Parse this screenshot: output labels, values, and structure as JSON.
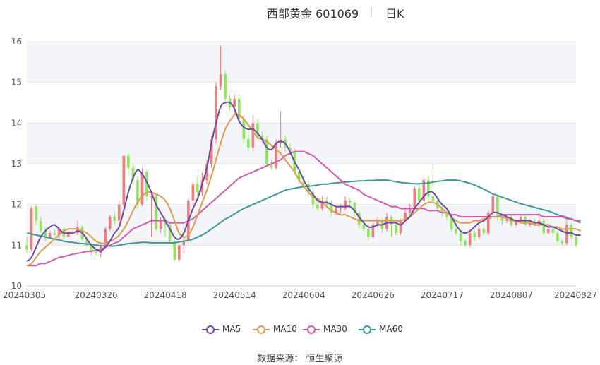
{
  "header": {
    "title": "西部黄金 601069",
    "period": "日K"
  },
  "footer": {
    "source_label": "数据来源：",
    "source_name": "恒生聚源"
  },
  "chart_data": {
    "type": "candlestick",
    "title": "西部黄金 601069",
    "period": "日K",
    "xlabel": "",
    "ylabel": "",
    "ylim": [
      10,
      16
    ],
    "yticks": [
      10,
      11,
      12,
      13,
      14,
      15,
      16
    ],
    "x_tick_labels": [
      "20240305",
      "20240326",
      "20240418",
      "20240514",
      "20240604",
      "20240626",
      "20240717",
      "20240807",
      "20240827"
    ],
    "x_tick_indices": [
      0,
      15,
      30,
      45,
      60,
      75,
      90,
      105,
      120
    ],
    "grid": true,
    "legend_position": "bottom",
    "colors": {
      "up": "#f07c7c",
      "down": "#8ee65b",
      "ma5": "#6a4aa8",
      "ma10": "#e09a50",
      "ma30": "#d35ab0",
      "ma60": "#3e9999"
    },
    "ohlc": [
      [
        11.0,
        10.9,
        11.2,
        10.8
      ],
      [
        10.9,
        11.9,
        11.95,
        10.85
      ],
      [
        11.95,
        11.6,
        12.0,
        11.5
      ],
      [
        11.6,
        11.35,
        11.7,
        11.3
      ],
      [
        11.35,
        11.2,
        11.45,
        11.1
      ],
      [
        11.2,
        11.3,
        11.35,
        11.15
      ],
      [
        11.3,
        11.25,
        11.4,
        11.2
      ],
      [
        11.25,
        11.4,
        11.45,
        11.1
      ],
      [
        11.4,
        11.2,
        11.45,
        11.15
      ],
      [
        11.2,
        11.3,
        11.35,
        11.2
      ],
      [
        11.3,
        11.3,
        11.35,
        11.25
      ],
      [
        11.3,
        11.45,
        11.6,
        11.25
      ],
      [
        11.45,
        11.15,
        11.5,
        11.1
      ],
      [
        11.15,
        11.0,
        11.2,
        10.95
      ],
      [
        11.0,
        10.85,
        11.05,
        10.75
      ],
      [
        10.85,
        10.8,
        10.9,
        10.75
      ],
      [
        10.8,
        11.0,
        11.05,
        10.7
      ],
      [
        11.0,
        11.4,
        11.45,
        10.95
      ],
      [
        11.4,
        11.7,
        11.75,
        11.35
      ],
      [
        11.7,
        11.6,
        11.8,
        11.5
      ],
      [
        11.6,
        12.0,
        12.1,
        11.55
      ],
      [
        12.0,
        13.2,
        13.2,
        11.95
      ],
      [
        13.2,
        12.9,
        13.25,
        12.7
      ],
      [
        12.9,
        12.6,
        13.0,
        12.5
      ],
      [
        12.6,
        12.0,
        12.7,
        11.9
      ],
      [
        12.0,
        12.8,
        12.9,
        11.95
      ],
      [
        12.8,
        12.2,
        12.85,
        12.1
      ],
      [
        12.2,
        12.2,
        12.3,
        11.2
      ],
      [
        12.2,
        11.4,
        12.25,
        11.35
      ],
      [
        11.4,
        11.6,
        11.7,
        11.3
      ],
      [
        11.6,
        11.5,
        11.7,
        11.2
      ],
      [
        11.5,
        11.1,
        11.55,
        11.05
      ],
      [
        11.1,
        10.65,
        11.15,
        10.6
      ],
      [
        10.65,
        11.0,
        11.05,
        10.6
      ],
      [
        11.0,
        11.1,
        11.2,
        10.8
      ],
      [
        11.1,
        12.1,
        12.15,
        11.05
      ],
      [
        12.1,
        12.5,
        12.55,
        12.0
      ],
      [
        12.5,
        12.3,
        12.7,
        12.2
      ],
      [
        12.3,
        12.6,
        12.8,
        12.2
      ],
      [
        12.6,
        13.0,
        13.1,
        12.5
      ],
      [
        13.0,
        13.6,
        13.7,
        12.9
      ],
      [
        13.6,
        14.9,
        15.0,
        13.5
      ],
      [
        14.9,
        15.2,
        15.9,
        14.8
      ],
      [
        15.2,
        14.6,
        15.3,
        14.5
      ],
      [
        14.6,
        14.4,
        14.7,
        14.3
      ],
      [
        14.4,
        14.6,
        14.7,
        14.2
      ],
      [
        14.6,
        14.1,
        14.7,
        14.0
      ],
      [
        14.1,
        13.6,
        14.2,
        13.5
      ],
      [
        13.6,
        13.4,
        13.8,
        13.3
      ],
      [
        13.4,
        14.0,
        14.2,
        13.3
      ],
      [
        14.0,
        13.7,
        14.1,
        13.6
      ],
      [
        13.7,
        13.6,
        13.8,
        13.5
      ],
      [
        13.6,
        13.0,
        13.7,
        12.9
      ],
      [
        13.0,
        12.9,
        13.1,
        12.85
      ],
      [
        12.9,
        13.5,
        13.6,
        12.85
      ],
      [
        13.5,
        13.6,
        14.3,
        13.4
      ],
      [
        13.6,
        13.4,
        13.7,
        13.3
      ],
      [
        13.4,
        13.3,
        13.5,
        13.2
      ],
      [
        13.3,
        12.8,
        13.4,
        12.7
      ],
      [
        12.8,
        12.6,
        12.9,
        12.5
      ],
      [
        12.6,
        12.5,
        12.7,
        12.4
      ],
      [
        12.5,
        12.3,
        12.6,
        12.2
      ],
      [
        12.3,
        12.0,
        12.4,
        11.9
      ],
      [
        12.0,
        11.9,
        12.1,
        11.85
      ],
      [
        11.9,
        12.1,
        12.2,
        11.85
      ],
      [
        12.1,
        12.0,
        12.2,
        11.9
      ],
      [
        12.0,
        11.8,
        12.1,
        11.7
      ],
      [
        11.8,
        11.9,
        11.95,
        11.75
      ],
      [
        11.9,
        11.9,
        12.0,
        11.8
      ],
      [
        11.9,
        12.1,
        12.2,
        11.85
      ],
      [
        12.1,
        12.05,
        12.15,
        11.95
      ],
      [
        12.05,
        11.8,
        12.1,
        11.7
      ],
      [
        11.8,
        11.5,
        11.85,
        11.4
      ],
      [
        11.5,
        11.4,
        11.6,
        11.35
      ],
      [
        11.4,
        11.2,
        11.5,
        11.1
      ],
      [
        11.2,
        11.5,
        11.55,
        11.15
      ],
      [
        11.5,
        11.6,
        11.7,
        11.45
      ],
      [
        11.6,
        11.4,
        11.65,
        11.3
      ],
      [
        11.4,
        11.7,
        11.8,
        11.35
      ],
      [
        11.7,
        11.5,
        11.75,
        11.2
      ],
      [
        11.5,
        11.3,
        11.55,
        11.25
      ],
      [
        11.3,
        11.6,
        11.65,
        11.25
      ],
      [
        11.6,
        11.8,
        11.9,
        11.55
      ],
      [
        11.8,
        11.9,
        12.0,
        11.75
      ],
      [
        11.9,
        12.4,
        12.45,
        11.85
      ],
      [
        12.4,
        12.1,
        12.5,
        12.0
      ],
      [
        12.1,
        12.6,
        12.65,
        12.05
      ],
      [
        12.6,
        12.2,
        12.7,
        12.1
      ],
      [
        12.2,
        12.1,
        13.0,
        12.05
      ],
      [
        12.1,
        11.9,
        12.2,
        11.8
      ],
      [
        11.9,
        11.8,
        12.0,
        11.7
      ],
      [
        11.8,
        11.7,
        11.9,
        11.6
      ],
      [
        11.7,
        11.4,
        11.75,
        11.35
      ],
      [
        11.4,
        11.3,
        11.5,
        11.25
      ],
      [
        11.3,
        11.1,
        11.35,
        11.0
      ],
      [
        11.1,
        11.0,
        11.15,
        10.95
      ],
      [
        11.0,
        11.3,
        11.35,
        10.95
      ],
      [
        11.3,
        11.2,
        11.35,
        11.1
      ],
      [
        11.2,
        11.4,
        11.5,
        11.15
      ],
      [
        11.4,
        11.3,
        11.45,
        11.25
      ],
      [
        11.3,
        11.8,
        11.85,
        11.25
      ],
      [
        11.8,
        12.2,
        12.25,
        11.75
      ],
      [
        12.2,
        11.7,
        12.25,
        11.6
      ],
      [
        11.7,
        11.6,
        11.75,
        11.5
      ],
      [
        11.6,
        11.7,
        11.75,
        11.55
      ],
      [
        11.7,
        11.5,
        11.75,
        11.45
      ],
      [
        11.5,
        11.6,
        11.65,
        11.45
      ],
      [
        11.6,
        11.7,
        11.75,
        11.55
      ],
      [
        11.7,
        11.5,
        11.75,
        11.45
      ],
      [
        11.5,
        11.6,
        11.65,
        11.45
      ],
      [
        11.6,
        11.5,
        11.65,
        11.45
      ],
      [
        11.5,
        11.6,
        11.8,
        11.45
      ],
      [
        11.6,
        11.3,
        11.65,
        11.25
      ],
      [
        11.3,
        11.4,
        11.45,
        11.25
      ],
      [
        11.4,
        11.3,
        11.45,
        11.2
      ],
      [
        11.3,
        11.1,
        11.35,
        11.05
      ],
      [
        11.1,
        11.05,
        11.15,
        11.0
      ],
      [
        11.05,
        11.5,
        11.6,
        11.0
      ],
      [
        11.5,
        11.2,
        11.55,
        11.15
      ],
      [
        11.2,
        11.0,
        11.25,
        10.95
      ]
    ],
    "series": [
      {
        "name": "MA5",
        "values": [
          10.6,
          10.7,
          10.95,
          11.2,
          11.35,
          11.45,
          11.5,
          11.4,
          11.3,
          11.3,
          11.3,
          11.35,
          11.3,
          11.15,
          11.0,
          10.9,
          10.85,
          10.95,
          11.1,
          11.3,
          11.45,
          11.85,
          12.3,
          12.65,
          12.85,
          12.75,
          12.55,
          12.3,
          12.0,
          11.8,
          11.6,
          11.4,
          11.2,
          11.15,
          11.3,
          11.6,
          11.9,
          12.15,
          12.5,
          12.9,
          13.5,
          14.0,
          14.4,
          14.5,
          14.5,
          14.35,
          14.05,
          13.9,
          13.85,
          13.85,
          13.75,
          13.6,
          13.4,
          13.35,
          13.5,
          13.55,
          13.5,
          13.3,
          13.05,
          12.85,
          12.6,
          12.4,
          12.25,
          12.1,
          12.05,
          12.05,
          12.0,
          11.95,
          11.95,
          11.95,
          11.95,
          11.85,
          11.7,
          11.55,
          11.45,
          11.45,
          11.5,
          11.5,
          11.55,
          11.55,
          11.55,
          11.5,
          11.6,
          11.7,
          11.9,
          12.05,
          12.2,
          12.3,
          12.3,
          12.15,
          12.0,
          11.9,
          11.7,
          11.5,
          11.35,
          11.3,
          11.35,
          11.45,
          11.55,
          11.6,
          11.7,
          11.8,
          11.8,
          11.75,
          11.7,
          11.65,
          11.6,
          11.6,
          11.6,
          11.6,
          11.55,
          11.55,
          11.5,
          11.45,
          11.45,
          11.4,
          11.35,
          11.3,
          11.3,
          11.25,
          11.25
        ]
      },
      {
        "name": "MA10",
        "values": [
          10.5,
          10.55,
          10.7,
          10.85,
          10.95,
          11.05,
          11.15,
          11.25,
          11.35,
          11.4,
          11.4,
          11.4,
          11.35,
          11.3,
          11.2,
          11.1,
          11.05,
          11.05,
          11.1,
          11.15,
          11.25,
          11.4,
          11.6,
          11.85,
          12.05,
          12.2,
          12.3,
          12.3,
          12.25,
          12.2,
          12.1,
          11.9,
          11.6,
          11.3,
          11.2,
          11.25,
          11.45,
          11.75,
          12.05,
          12.35,
          12.7,
          13.1,
          13.5,
          13.85,
          14.05,
          14.2,
          14.2,
          14.1,
          13.95,
          13.8,
          13.65,
          13.6,
          13.55,
          13.45,
          13.35,
          13.25,
          13.1,
          12.95,
          12.8,
          12.6,
          12.45,
          12.3,
          12.2,
          12.15,
          12.05,
          11.95,
          11.85,
          11.8,
          11.75,
          11.75,
          11.7,
          11.65,
          11.6,
          11.6,
          11.6,
          11.6,
          11.6,
          11.6,
          11.6,
          11.6,
          11.6,
          11.6,
          11.65,
          11.7,
          11.8,
          11.9,
          12.0,
          12.05,
          12.05,
          12.0,
          11.9,
          11.8,
          11.7,
          11.6,
          11.55,
          11.55,
          11.55,
          11.6,
          11.6,
          11.65,
          11.65,
          11.7,
          11.7,
          11.7,
          11.65,
          11.6,
          11.6,
          11.55,
          11.55,
          11.55,
          11.5,
          11.5,
          11.5,
          11.5,
          11.45,
          11.45,
          11.4,
          11.4,
          11.4,
          11.4,
          11.35
        ]
      },
      {
        "name": "MA30",
        "values": [
          10.5,
          10.5,
          10.5,
          10.55,
          10.55,
          10.6,
          10.65,
          10.7,
          10.72,
          10.75,
          10.78,
          10.8,
          10.82,
          10.85,
          10.85,
          10.88,
          10.9,
          10.95,
          11.0,
          11.05,
          11.1,
          11.2,
          11.3,
          11.4,
          11.45,
          11.5,
          11.55,
          11.6,
          11.6,
          11.6,
          11.6,
          11.55,
          11.55,
          11.55,
          11.55,
          11.6,
          11.65,
          11.75,
          11.85,
          11.95,
          12.05,
          12.15,
          12.25,
          12.35,
          12.45,
          12.55,
          12.65,
          12.7,
          12.75,
          12.8,
          12.85,
          12.9,
          12.95,
          13.0,
          13.05,
          13.1,
          13.2,
          13.25,
          13.3,
          13.3,
          13.3,
          13.25,
          13.2,
          13.1,
          13.0,
          12.9,
          12.8,
          12.7,
          12.6,
          12.5,
          12.45,
          12.4,
          12.35,
          12.25,
          12.2,
          12.15,
          12.1,
          12.05,
          12.0,
          11.95,
          11.95,
          11.9,
          11.9,
          11.9,
          11.9,
          11.9,
          11.9,
          11.85,
          11.85,
          11.85,
          11.8,
          11.8,
          11.75,
          11.75,
          11.7,
          11.7,
          11.7,
          11.7,
          11.7,
          11.7,
          11.7,
          11.7,
          11.7,
          11.75,
          11.75,
          11.75,
          11.75,
          11.75,
          11.75,
          11.75,
          11.75,
          11.75,
          11.7,
          11.7,
          11.7,
          11.7,
          11.7,
          11.65,
          11.65,
          11.6,
          11.6
        ]
      },
      {
        "name": "MA60",
        "values": [
          11.3,
          11.28,
          11.25,
          11.23,
          11.2,
          11.18,
          11.15,
          11.13,
          11.1,
          11.08,
          11.07,
          11.05,
          11.04,
          11.03,
          11.02,
          11.0,
          10.99,
          10.98,
          10.98,
          10.98,
          11.0,
          11.02,
          11.04,
          11.05,
          11.06,
          11.07,
          11.07,
          11.06,
          11.06,
          11.06,
          11.06,
          11.06,
          11.06,
          11.08,
          11.1,
          11.12,
          11.15,
          11.2,
          11.25,
          11.32,
          11.4,
          11.48,
          11.56,
          11.64,
          11.7,
          11.77,
          11.84,
          11.9,
          11.95,
          12.0,
          12.05,
          12.1,
          12.15,
          12.2,
          12.25,
          12.3,
          12.35,
          12.38,
          12.4,
          12.42,
          12.44,
          12.45,
          12.46,
          12.48,
          12.5,
          12.5,
          12.52,
          12.53,
          12.54,
          12.55,
          12.56,
          12.57,
          12.58,
          12.58,
          12.59,
          12.59,
          12.6,
          12.6,
          12.6,
          12.58,
          12.56,
          12.54,
          12.53,
          12.52,
          12.51,
          12.51,
          12.52,
          12.53,
          12.55,
          12.57,
          12.58,
          12.6,
          12.6,
          12.6,
          12.58,
          12.55,
          12.52,
          12.48,
          12.43,
          12.38,
          12.32,
          12.26,
          12.22,
          12.18,
          12.14,
          12.1,
          12.06,
          12.02,
          11.99,
          11.96,
          11.93,
          11.9,
          11.87,
          11.84,
          11.8,
          11.75,
          11.72,
          11.68,
          11.64,
          11.6,
          11.55
        ]
      }
    ]
  }
}
